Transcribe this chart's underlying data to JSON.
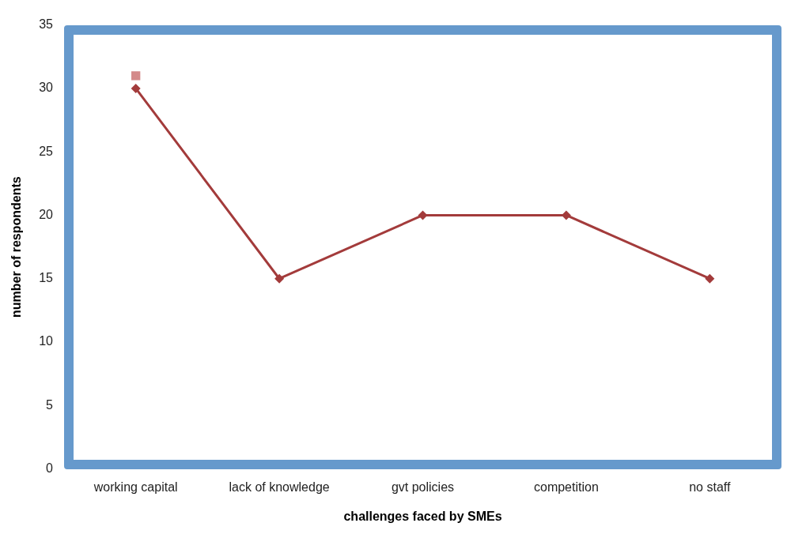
{
  "chart_data": {
    "type": "line",
    "xlabel": "challenges faced by SMEs",
    "ylabel": "number of respondents",
    "categories": [
      "working capital",
      "lack of knowledge",
      "gvt policies",
      "competition",
      "no staff"
    ],
    "series": [
      {
        "color": "#a33b3b",
        "values": [
          30,
          15,
          20,
          20,
          15
        ],
        "marker": "diamond"
      },
      {
        "type": "scatter",
        "color": "#d48a8a",
        "values": [
          31,
          null,
          null,
          null,
          null
        ],
        "marker": "square"
      }
    ],
    "ylim": [
      0,
      35
    ],
    "yticks": [
      0,
      5,
      10,
      15,
      20,
      25,
      30,
      35
    ],
    "grid": false,
    "legend": false
  }
}
